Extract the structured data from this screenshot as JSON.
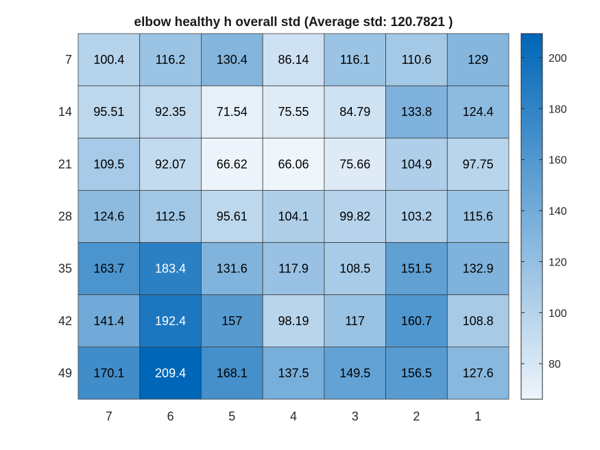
{
  "chart_data": {
    "type": "heatmap",
    "title": "elbow healthy h overall std (Average std: 120.7821 )",
    "x_labels": [
      "7",
      "6",
      "5",
      "4",
      "3",
      "2",
      "1"
    ],
    "y_labels": [
      "7",
      "14",
      "21",
      "28",
      "35",
      "42",
      "49"
    ],
    "values": [
      [
        "100.4",
        "116.2",
        "130.4",
        "86.14",
        "116.1",
        "110.6",
        "129"
      ],
      [
        "95.51",
        "92.35",
        "71.54",
        "75.55",
        "84.79",
        "133.8",
        "124.4"
      ],
      [
        "109.5",
        "92.07",
        "66.62",
        "66.06",
        "75.66",
        "104.9",
        "97.75"
      ],
      [
        "124.6",
        "112.5",
        "95.61",
        "104.1",
        "99.82",
        "103.2",
        "115.6"
      ],
      [
        "163.7",
        "183.4",
        "131.6",
        "117.9",
        "108.5",
        "151.5",
        "132.9"
      ],
      [
        "141.4",
        "192.4",
        "157",
        "98.19",
        "117",
        "160.7",
        "108.8"
      ],
      [
        "170.1",
        "209.4",
        "168.1",
        "137.5",
        "149.5",
        "156.5",
        "127.6"
      ]
    ],
    "colorbar": {
      "range": [
        66.06,
        209.4
      ],
      "ticks": [
        "80",
        "100",
        "120",
        "140",
        "160",
        "180",
        "200"
      ]
    },
    "colors": {
      "low": "#eef5fb",
      "high": "#0066b8",
      "light_text": "#ffffff",
      "dark_text": "#000000"
    }
  }
}
